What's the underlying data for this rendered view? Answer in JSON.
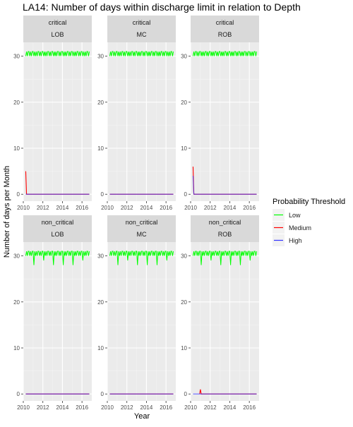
{
  "chart_data": {
    "type": "line",
    "title": "LA14: Number of days within discharge limit in relation to Depth",
    "xlabel": "Year",
    "ylabel": "Number of days per Month",
    "xlim": [
      2010,
      2017
    ],
    "ylim": [
      -1.5,
      33
    ],
    "xticks": [
      2010,
      2012,
      2014,
      2016
    ],
    "xtick_labels": [
      "2010",
      "2012",
      "2014",
      "2016"
    ],
    "yticks": [
      0,
      10,
      20,
      30
    ],
    "ytick_labels": [
      "0",
      "10",
      "20",
      "30"
    ],
    "grid": true,
    "legend": {
      "title": "Probability Threshold",
      "position": "right",
      "entries": [
        "Low",
        "Medium",
        "High"
      ]
    },
    "colors": {
      "Low": "#00ff00",
      "Medium": "#ff0000",
      "High": "#3333ff"
    },
    "facet_rows": [
      "critical",
      "non_critical"
    ],
    "facet_cols": [
      "LOB",
      "MC",
      "ROB"
    ],
    "months_shown": "2010-04 to 2016-10 (monthly)",
    "series_patterns": {
      "critical": {
        "Low": "monthly day-count 30 or 31; dips to ~30 in 30-day months",
        "LOB": {
          "Medium": [
            [
              2010.25,
              5
            ],
            [
              2010.33,
              0
            ]
          ],
          "High": 0
        },
        "MC": {
          "Medium": 0,
          "High": 0
        },
        "ROB": {
          "Medium": [
            [
              2010.25,
              6
            ],
            [
              2010.33,
              0
            ]
          ],
          "High": [
            [
              2010.25,
              4
            ],
            [
              2010.33,
              0
            ]
          ]
        }
      },
      "non_critical": {
        "Low": "monthly day-count 28-31",
        "LOB": {
          "Medium": 0,
          "High": 0
        },
        "MC": {
          "Medium": 0,
          "High": 0
        },
        "ROB": {
          "Medium": [
            [
              2010.92,
              0
            ],
            [
              2011.0,
              1
            ],
            [
              2011.08,
              0
            ]
          ],
          "High": 0
        }
      }
    }
  }
}
